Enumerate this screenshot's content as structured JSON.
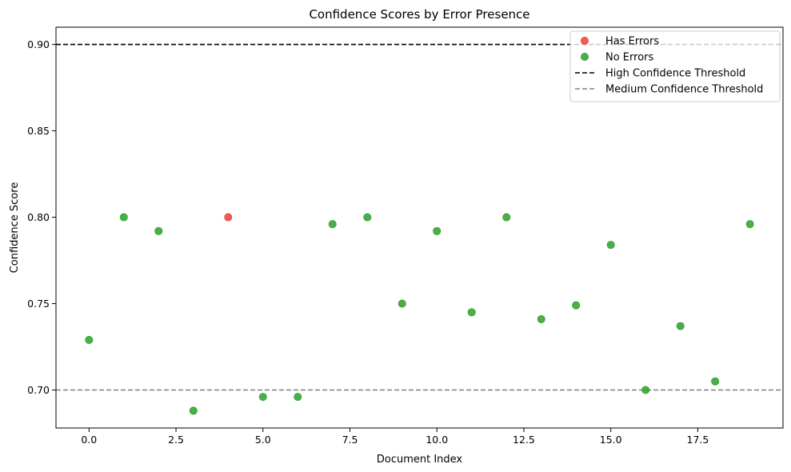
{
  "chart_data": {
    "type": "scatter",
    "title": "Confidence Scores by Error Presence",
    "xlabel": "Document Index",
    "ylabel": "Confidence Score",
    "xlim": [
      -0.95,
      19.95
    ],
    "ylim": [
      0.678,
      0.91
    ],
    "xticks": [
      0.0,
      2.5,
      5.0,
      7.5,
      10.0,
      12.5,
      15.0,
      17.5
    ],
    "xtick_labels": [
      "0.0",
      "2.5",
      "5.0",
      "7.5",
      "10.0",
      "12.5",
      "15.0",
      "17.5"
    ],
    "yticks": [
      0.7,
      0.75,
      0.8,
      0.85,
      0.9
    ],
    "ytick_labels": [
      "0.70",
      "0.75",
      "0.80",
      "0.85",
      "0.90"
    ],
    "grid": false,
    "legend_position": "top-right",
    "series": [
      {
        "name": "Has Errors",
        "color": "#f03c3c",
        "points": [
          [
            4,
            0.8
          ]
        ]
      },
      {
        "name": "No Errors",
        "color": "#2ca02c",
        "points": [
          [
            0,
            0.729
          ],
          [
            1,
            0.8
          ],
          [
            2,
            0.792
          ],
          [
            3,
            0.688
          ],
          [
            5,
            0.696
          ],
          [
            6,
            0.696
          ],
          [
            7,
            0.796
          ],
          [
            8,
            0.8
          ],
          [
            9,
            0.75
          ],
          [
            10,
            0.792
          ],
          [
            11,
            0.745
          ],
          [
            12,
            0.8
          ],
          [
            13,
            0.741
          ],
          [
            14,
            0.749
          ],
          [
            15,
            0.784
          ],
          [
            16,
            0.7
          ],
          [
            17,
            0.737
          ],
          [
            18,
            0.705
          ],
          [
            19,
            0.796
          ]
        ]
      }
    ],
    "reference_lines": [
      {
        "name": "High Confidence Threshold",
        "y": 0.9,
        "color": "#000000",
        "style": "dashed"
      },
      {
        "name": "Medium Confidence Threshold",
        "y": 0.7,
        "color": "#808080",
        "style": "dashed"
      }
    ]
  }
}
